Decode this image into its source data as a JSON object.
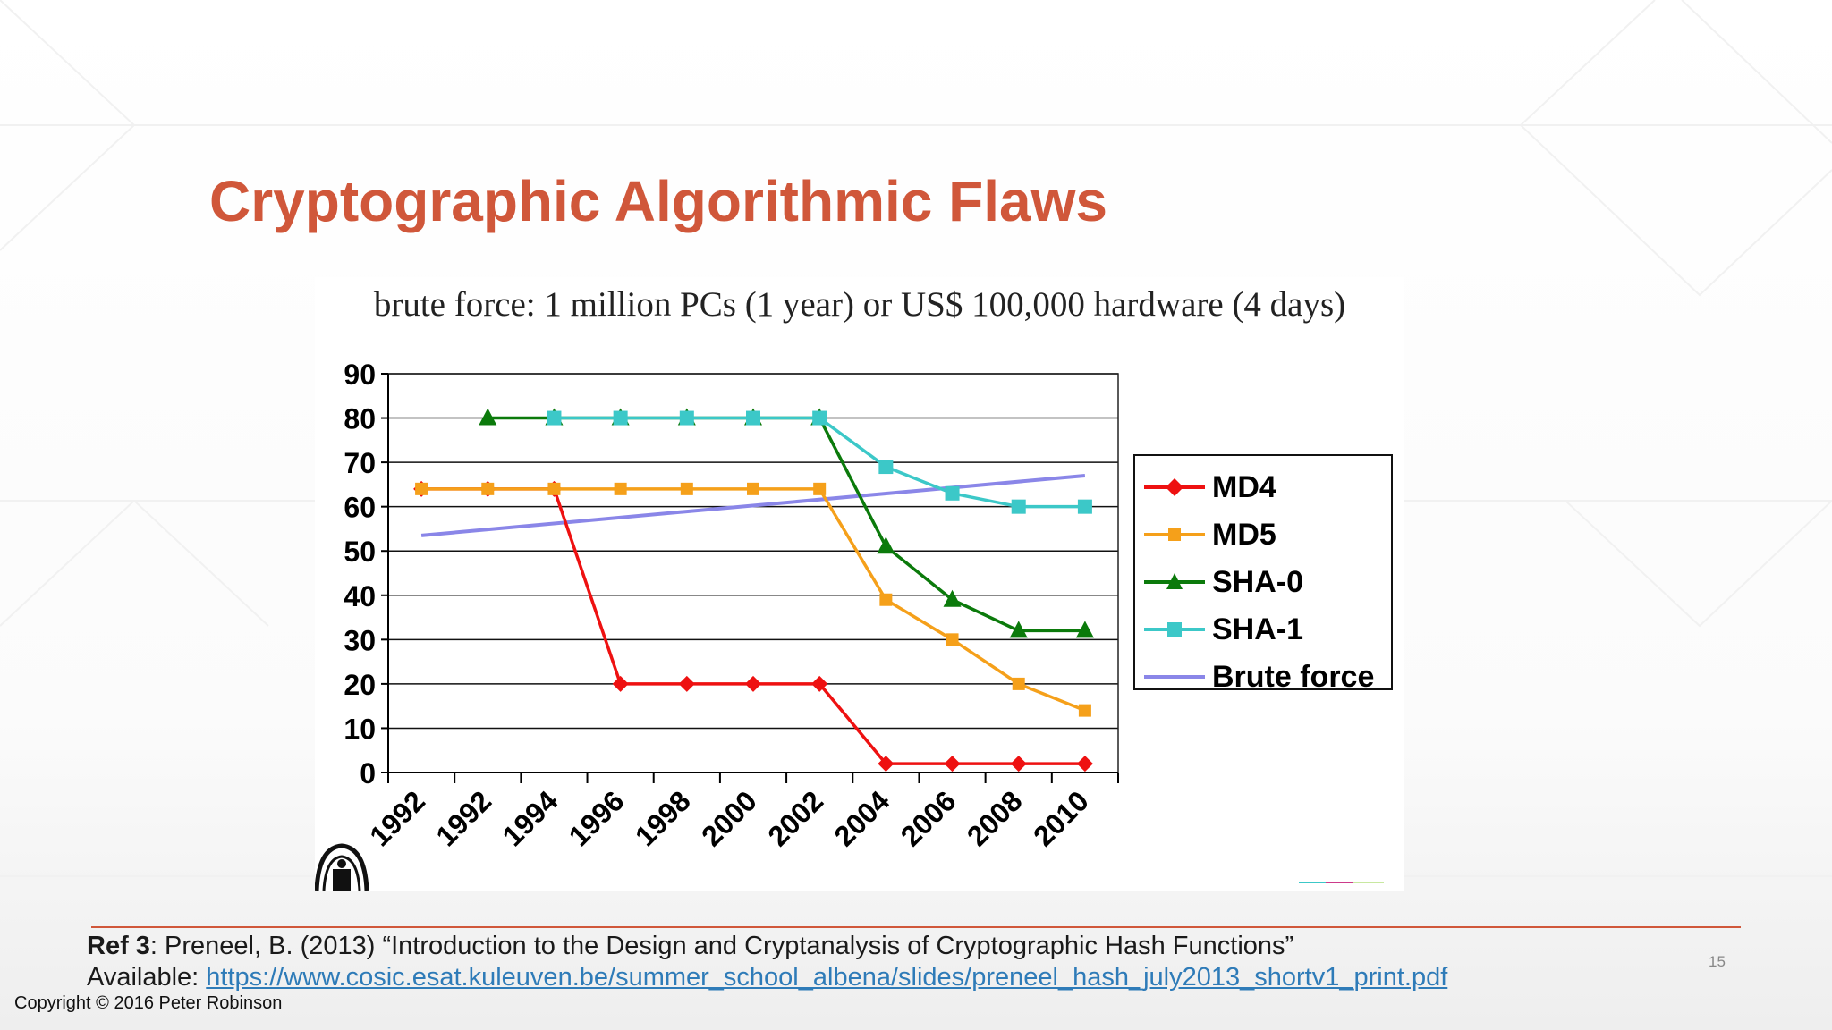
{
  "slide": {
    "title": "Cryptographic Algorithmic Flaws",
    "page_number": "15",
    "copyright": "Copyright © 2016 Peter Robinson",
    "reference": {
      "tag": "Ref 3",
      "text": ": Preneel, B. (2013) “Introduction to the Design and Cryptanalysis of Cryptographic Hash Functions”",
      "available_label": "Available: ",
      "url": "https://www.cosic.esat.kuleuven.be/summer_school_albena/slides/preneel_hash_july2013_shortv1_print.pdf"
    }
  },
  "colors": {
    "title": "#d0573a",
    "md4": "#ee1111",
    "md5": "#f5a01a",
    "sha0": "#0b7a0b",
    "sha1": "#3cc8c8",
    "brute": "#8a86e8",
    "link": "#2e7bb8"
  },
  "chart_data": {
    "type": "line",
    "title": "brute force: 1 million PCs (1 year) or US$ 100,000 hardware (4 days)",
    "categories": [
      "1992",
      "1992",
      "1994",
      "1996",
      "1998",
      "2000",
      "2002",
      "2004",
      "2006",
      "2008",
      "2010"
    ],
    "yticks": [
      "90",
      "80",
      "70",
      "60",
      "50",
      "40",
      "30",
      "20",
      "10",
      "0"
    ],
    "ylim": [
      0,
      90
    ],
    "grid": true,
    "legend_position": "right",
    "series": [
      {
        "name": "MD4",
        "color": "#ee1111",
        "marker": "diamond",
        "x": [
          0,
          1,
          2,
          3,
          4,
          5,
          6,
          7,
          8,
          9,
          10
        ],
        "values": [
          64,
          64,
          64,
          20,
          20,
          20,
          20,
          2,
          2,
          2,
          2
        ]
      },
      {
        "name": "MD5",
        "color": "#f5a01a",
        "marker": "square",
        "x": [
          0,
          1,
          2,
          3,
          4,
          5,
          6,
          7,
          8,
          9,
          10
        ],
        "values": [
          64,
          64,
          64,
          64,
          64,
          64,
          64,
          39,
          30,
          20,
          14
        ]
      },
      {
        "name": "SHA-0",
        "color": "#0b7a0b",
        "marker": "triangle",
        "x": [
          1,
          2,
          3,
          4,
          5,
          6,
          7,
          8,
          9,
          10
        ],
        "values": [
          80,
          80,
          80,
          80,
          80,
          80,
          51,
          39,
          32,
          32
        ]
      },
      {
        "name": "SHA-1",
        "color": "#3cc8c8",
        "marker": "square",
        "x": [
          2,
          3,
          4,
          5,
          6,
          7,
          8,
          9,
          10
        ],
        "values": [
          80,
          80,
          80,
          80,
          80,
          69,
          63,
          60,
          60
        ]
      },
      {
        "name": "Brute force",
        "color": "#8a86e8",
        "marker": "none",
        "x": [
          0,
          10
        ],
        "values": [
          53.5,
          67
        ]
      }
    ]
  }
}
